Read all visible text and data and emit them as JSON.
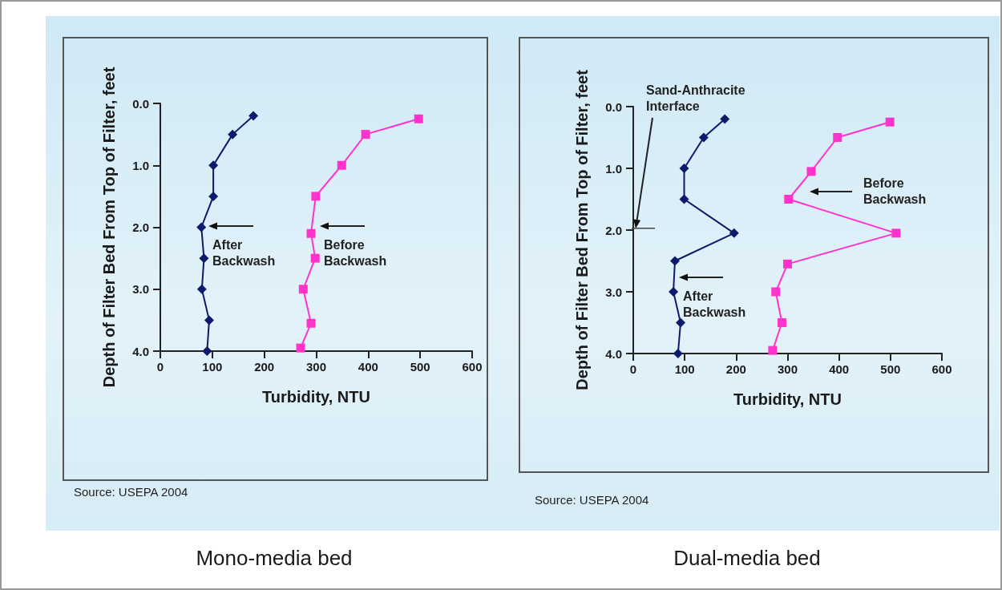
{
  "chart_data": [
    {
      "type": "line",
      "title": "Mono-media bed",
      "xlabel": "Turbidity, NTU",
      "ylabel": "Depth of Filter Bed From Top of Filter, feet",
      "xlim": [
        0,
        600
      ],
      "xticks": [
        0,
        100,
        200,
        300,
        400,
        500,
        600
      ],
      "ylim": [
        4,
        0
      ],
      "yticks": [
        {
          "value": 0,
          "label": "0.0"
        },
        {
          "value": 1,
          "label": "1.0"
        },
        {
          "value": 2,
          "label": "2.0"
        },
        {
          "value": 3,
          "label": "3.0"
        },
        {
          "value": 4,
          "label": "4.0"
        }
      ],
      "grid": false,
      "line_style": "solid",
      "series": [
        {
          "color": "#0d1a6b",
          "marker": "diamond",
          "x": [
            179,
            139,
            102,
            102,
            79,
            84,
            80,
            94,
            90
          ],
          "values": [
            0.2,
            0.5,
            1.0,
            1.5,
            2.0,
            2.5,
            3.0,
            3.5,
            4.0
          ]
        },
        {
          "color": "#ff33cc",
          "marker": "square",
          "x": [
            497,
            395,
            349,
            299,
            290,
            298,
            275,
            290,
            270
          ],
          "values": [
            0.25,
            0.5,
            1.0,
            1.5,
            2.1,
            2.5,
            3.0,
            3.55,
            3.95
          ]
        }
      ],
      "annotations": [
        "After Backwash",
        "Before Backwash",
        "Source: USEPA 2004"
      ]
    },
    {
      "type": "line",
      "title": "Dual-media bed",
      "xlabel": "Turbidity, NTU",
      "ylabel": "Depth of Filter Bed From Top of Filter, feet",
      "xlim": [
        0,
        600
      ],
      "xticks": [
        0,
        100,
        200,
        300,
        400,
        500,
        600
      ],
      "ylim": [
        4,
        0
      ],
      "yticks": [
        {
          "value": 0,
          "label": "0.0"
        },
        {
          "value": 1,
          "label": "1.0"
        },
        {
          "value": 2,
          "label": "2.0"
        },
        {
          "value": 3,
          "label": "3.0"
        },
        {
          "value": 4,
          "label": "4.0"
        }
      ],
      "grid": false,
      "line_style": "solid",
      "series": [
        {
          "color": "#0d1a6b",
          "marker": "diamond",
          "x": [
            178,
            137,
            99,
            99,
            196,
            81,
            78,
            92,
            87
          ],
          "values": [
            0.2,
            0.5,
            1.0,
            1.5,
            2.05,
            2.5,
            3.0,
            3.5,
            4.0
          ]
        },
        {
          "color": "#ff33cc",
          "marker": "square",
          "x": [
            499,
            397,
            346,
            302,
            511,
            300,
            277,
            289,
            271
          ],
          "values": [
            0.25,
            0.5,
            1.05,
            1.5,
            2.05,
            2.55,
            3.0,
            3.5,
            3.95
          ]
        }
      ],
      "annotations": [
        "Sand-Anthracite Interface",
        "Before Backwash",
        "After Backwash",
        "Source: USEPA 2004"
      ]
    }
  ]
}
